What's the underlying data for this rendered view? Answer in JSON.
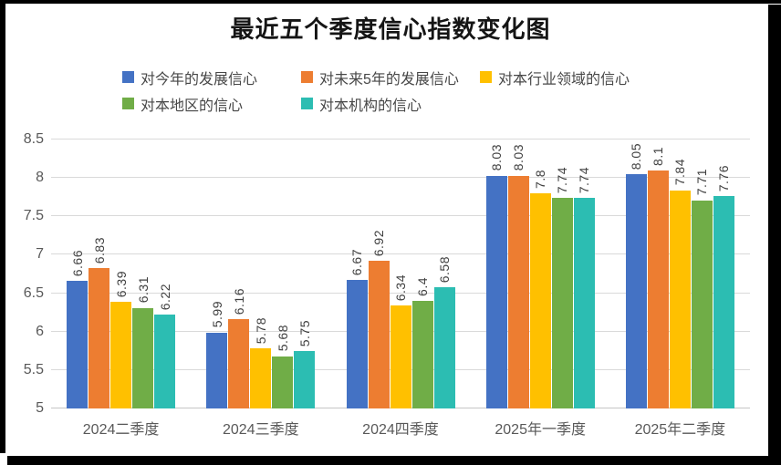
{
  "title": "最近五个季度信心指数变化图",
  "chart_data": {
    "type": "bar",
    "title": "最近五个季度信心指数变化图",
    "categories": [
      "2024二季度",
      "2024三季度",
      "2024四季度",
      "2025年一季度",
      "2025年二季度"
    ],
    "series": [
      {
        "name": "对今年的发展信心",
        "color": "#4472C4",
        "values": [
          6.66,
          5.99,
          6.67,
          8.03,
          8.05
        ]
      },
      {
        "name": "对未来5年的发展信心",
        "color": "#ED7D31",
        "values": [
          6.83,
          6.16,
          6.92,
          8.03,
          8.1
        ]
      },
      {
        "name": "对本行业领域的信心",
        "color": "#FFC000",
        "values": [
          6.39,
          5.78,
          6.34,
          7.8,
          7.84
        ]
      },
      {
        "name": "对本地区的信心",
        "color": "#70AD47",
        "values": [
          6.31,
          5.68,
          6.4,
          7.74,
          7.71
        ]
      },
      {
        "name": "对本机构的信心",
        "color": "#2CBDB2",
        "values": [
          6.22,
          5.75,
          6.58,
          7.74,
          7.76
        ]
      }
    ],
    "ylim": [
      5,
      8.5
    ],
    "ytick_step": 0.5,
    "yticks": [
      "5",
      "5.5",
      "6",
      "6.5",
      "7",
      "7.5",
      "8",
      "8.5"
    ],
    "grid": true,
    "data_labels_rotation_deg": -90,
    "legend_position": "top",
    "legend_rows": [
      3,
      2
    ]
  },
  "frame_color": "#000000",
  "gridline_color": "#d9d9d9"
}
